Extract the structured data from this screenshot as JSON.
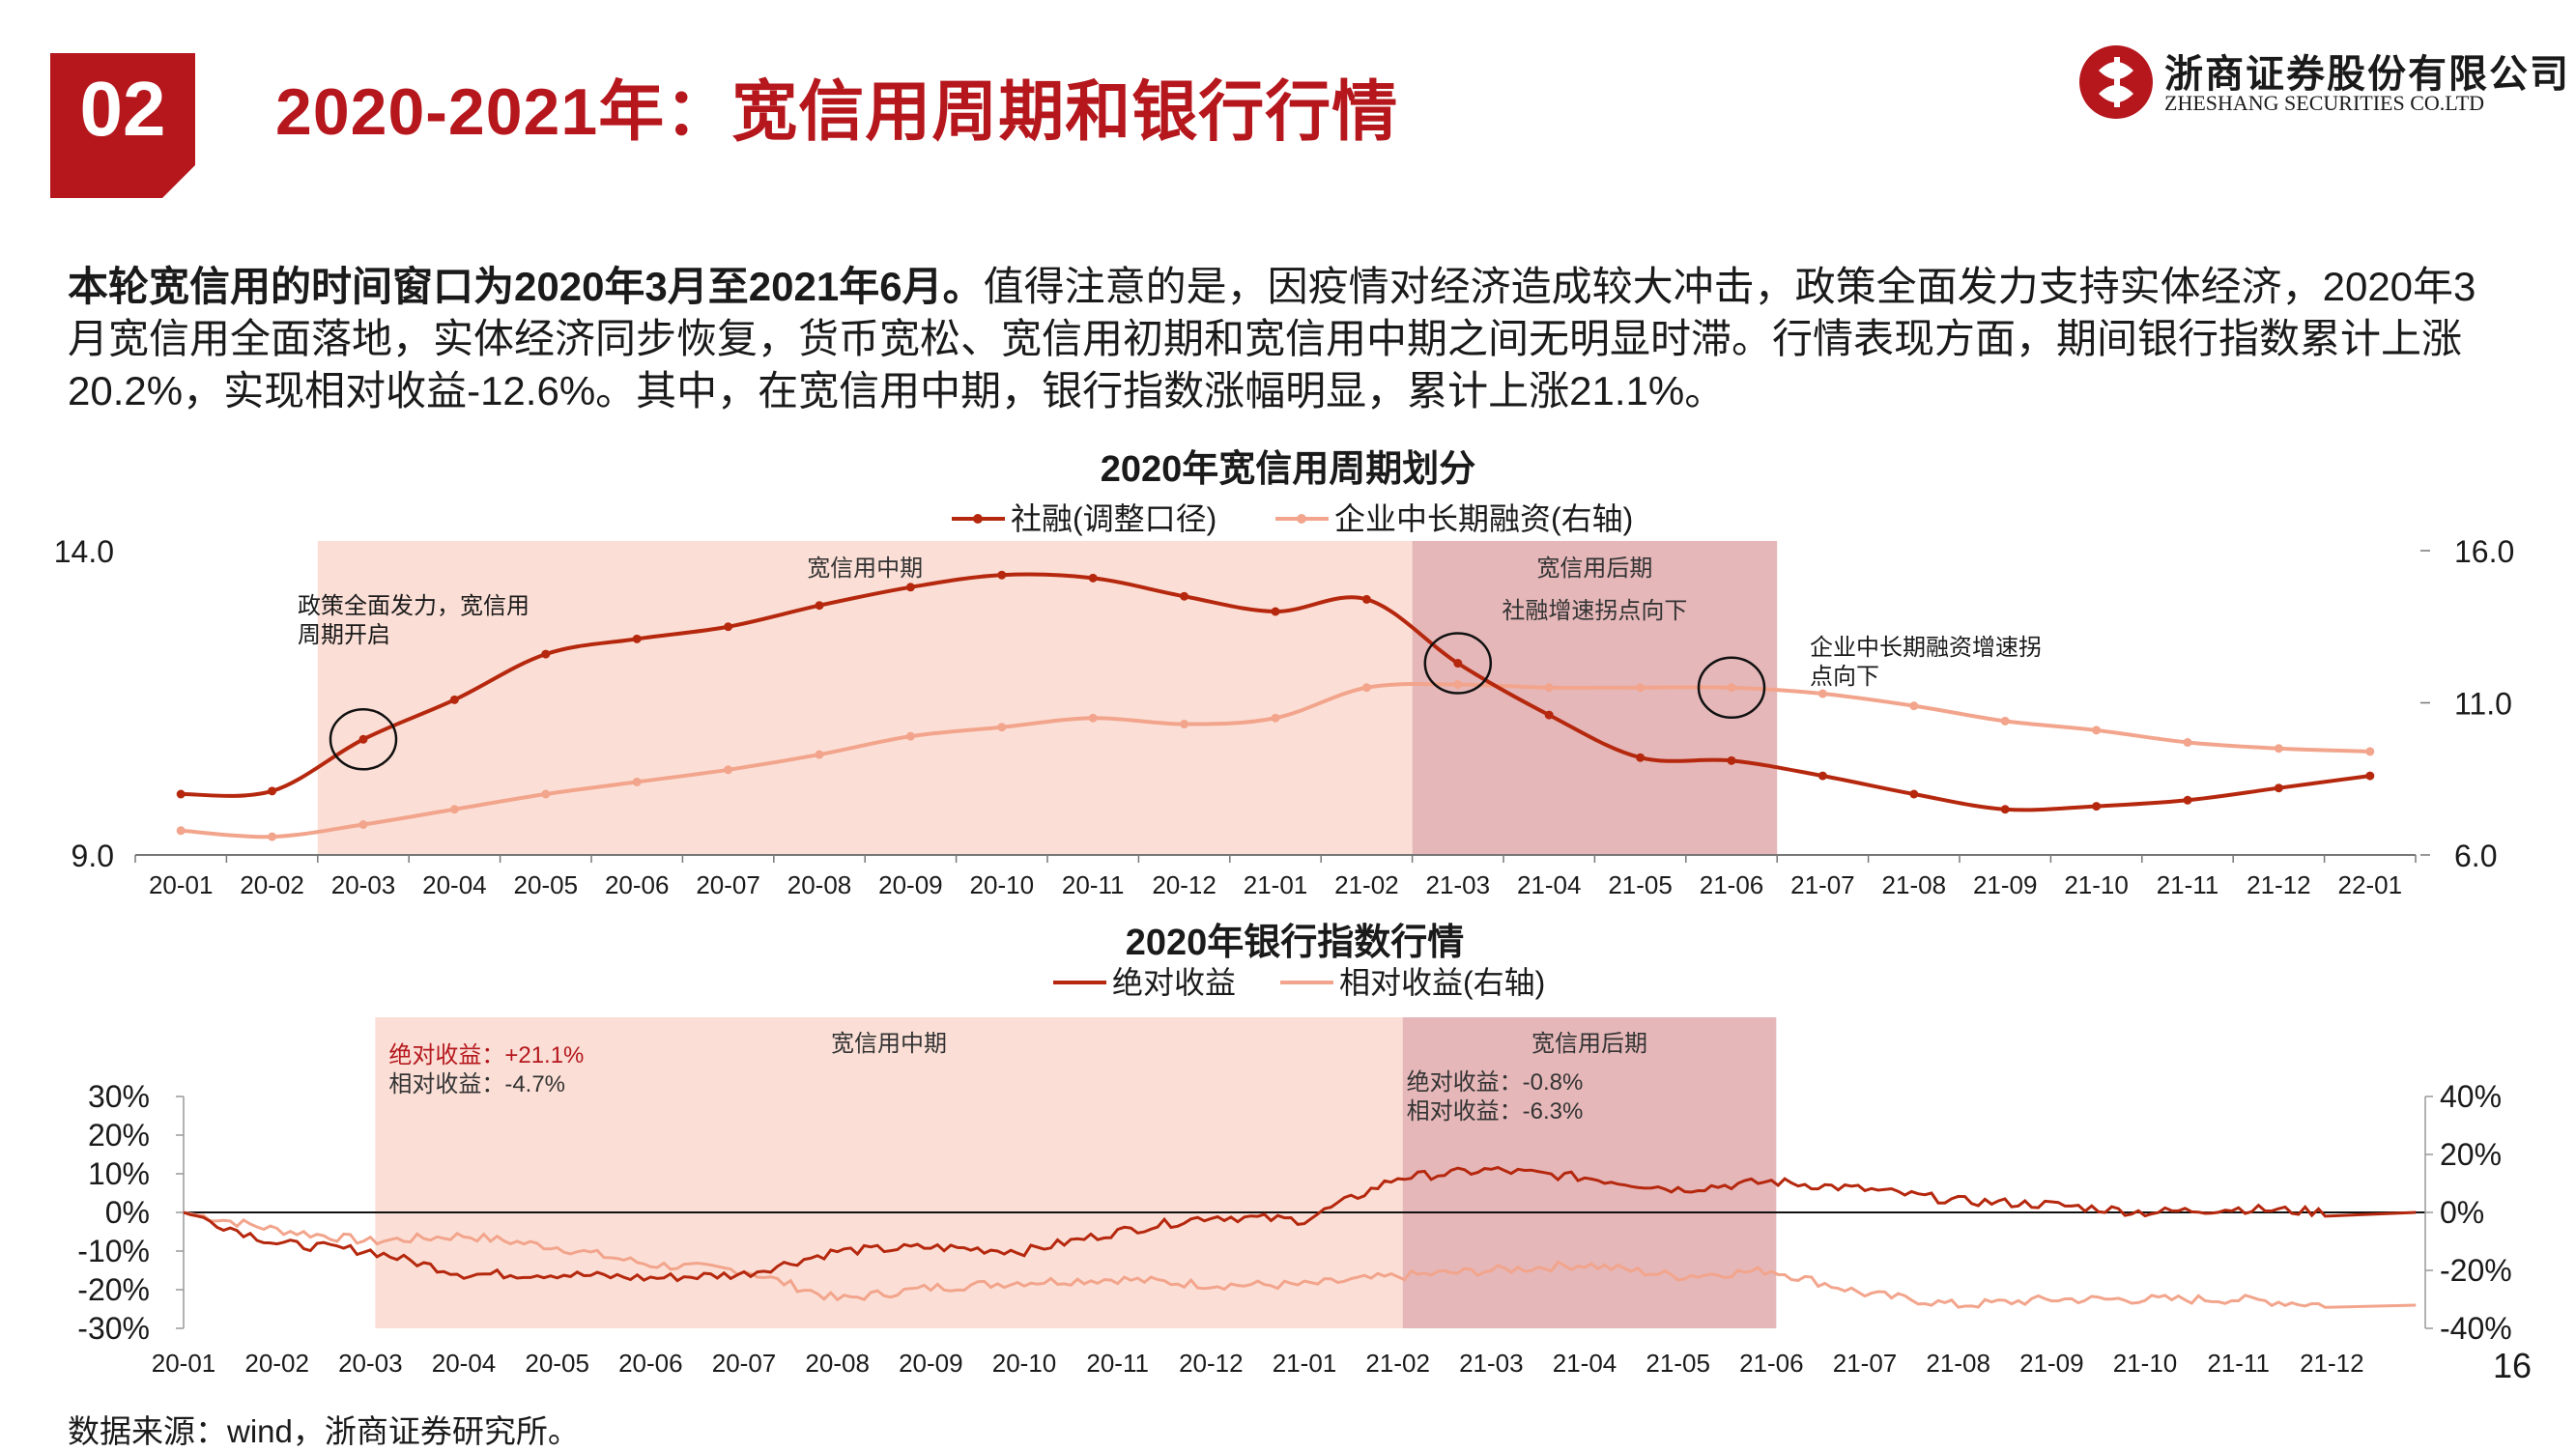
{
  "header": {
    "section_number": "02",
    "title": "2020-2021年：宽信用周期和银行行情",
    "logo_cn": "浙商证券股份有限公司",
    "logo_en": "ZHESHANG SECURITIES CO.LTD"
  },
  "paragraph": {
    "lead": "本轮宽信用的时间窗口为2020年3月至2021年6月。",
    "body": "值得注意的是，因疫情对经济造成较大冲击，政策全面发力支持实体经济，2020年3月宽信用全面落地，实体经济同步恢复，货币宽松、宽信用初期和宽信用中期之间无明显时滞。行情表现方面，期间银行指数累计上涨20.2%，实现相对收益-12.6%。其中，在宽信用中期，银行指数涨幅明显，累计上涨21.1%。"
  },
  "colors": {
    "brand_red": "#b5171d",
    "series_dark": "#b5280e",
    "series_light": "#f2a58c",
    "shade_mid": "#fbdfd6",
    "shade_late": "#e5b7b9"
  },
  "chart_data": [
    {
      "type": "line",
      "title": "2020年宽信用周期划分",
      "x": [
        "20-01",
        "20-02",
        "20-03",
        "20-04",
        "20-05",
        "20-06",
        "20-07",
        "20-08",
        "20-09",
        "20-10",
        "20-11",
        "20-12",
        "21-01",
        "21-02",
        "21-03",
        "21-04",
        "21-05",
        "21-06",
        "21-07",
        "21-08",
        "21-09",
        "21-10",
        "21-11",
        "21-12",
        "22-01"
      ],
      "series": [
        {
          "name": "社融(调整口径)",
          "axis": "left",
          "marker": true,
          "values": [
            10.0,
            10.05,
            10.9,
            11.55,
            12.3,
            12.55,
            12.75,
            13.1,
            13.4,
            13.6,
            13.55,
            13.25,
            13.0,
            13.2,
            12.15,
            11.3,
            10.6,
            10.55,
            10.3,
            10.0,
            9.75,
            9.8,
            9.9,
            10.1,
            10.3
          ]
        },
        {
          "name": "企业中长期融资(右轴)",
          "axis": "right",
          "marker": true,
          "values": [
            6.8,
            6.6,
            7.0,
            7.5,
            8.0,
            8.4,
            8.8,
            9.3,
            9.9,
            10.2,
            10.5,
            10.3,
            10.5,
            11.5,
            11.6,
            11.5,
            11.5,
            11.5,
            11.3,
            10.9,
            10.4,
            10.1,
            9.7,
            9.5,
            9.4
          ]
        }
      ],
      "ylim_left": [
        9.0,
        14.0
      ],
      "yticks_left": [
        "14.0",
        "9.0"
      ],
      "ylim_right": [
        6.0,
        16.0
      ],
      "yticks_right": [
        "16.0",
        "11.0",
        "6.0"
      ],
      "legend_position": "top-center",
      "shaded_periods": [
        {
          "label": "宽信用中期",
          "from": "20-03",
          "to": "21-03"
        },
        {
          "label": "宽信用后期",
          "from": "21-03",
          "to": "21-07",
          "sublabel": "社融增速拐点向下"
        }
      ],
      "annotations": [
        {
          "text_lines": [
            "政策全面发力，宽信用",
            "周期开启"
          ],
          "at": "20-03"
        },
        {
          "text_lines": [
            "企业中长期融资增速拐",
            "点向下"
          ],
          "at": "21-06"
        }
      ],
      "circled_points": [
        {
          "x": "20-03",
          "value": 10.9,
          "axis": "left"
        },
        {
          "x": "21-03",
          "value": 12.15,
          "axis": "left"
        },
        {
          "x": "21-06",
          "value": 11.5,
          "axis": "right"
        }
      ]
    },
    {
      "type": "line",
      "title": "2020年银行指数行情",
      "x": [
        "20-01",
        "20-02",
        "20-03",
        "20-04",
        "20-05",
        "20-06",
        "20-07",
        "20-08",
        "20-09",
        "20-10",
        "20-11",
        "20-12",
        "21-01",
        "21-02",
        "21-03",
        "21-04",
        "21-05",
        "21-06",
        "21-07",
        "21-08",
        "21-09",
        "21-10",
        "21-11",
        "21-12"
      ],
      "series": [
        {
          "name": "绝对收益",
          "axis": "left",
          "unit": "%",
          "values": [
            0,
            -8,
            -10,
            -16,
            -16,
            -17,
            -16,
            -10,
            -9,
            -10,
            -5,
            -1,
            -2,
            9,
            11,
            9,
            6,
            8,
            6,
            3,
            2,
            0,
            1,
            0
          ]
        },
        {
          "name": "相对收益(右轴)",
          "axis": "right",
          "unit": "%",
          "values": [
            0,
            -6,
            -10,
            -8,
            -12,
            -18,
            -20,
            -30,
            -26,
            -24,
            -23,
            -25,
            -25,
            -22,
            -20,
            -18,
            -22,
            -20,
            -28,
            -32,
            -30,
            -30,
            -30,
            -32
          ]
        }
      ],
      "ylim_left": [
        -30,
        30
      ],
      "yticks_left": [
        "30%",
        "20%",
        "10%",
        "0%",
        "-10%",
        "-20%",
        "-30%"
      ],
      "ylim_right": [
        -40,
        40
      ],
      "yticks_right": [
        "40%",
        "20%",
        "0%",
        "-20%",
        "-40%"
      ],
      "legend_position": "top-center",
      "shaded_periods": [
        {
          "label": "宽信用中期",
          "from": "20-03",
          "to": "21-02"
        },
        {
          "label": "宽信用后期",
          "from": "21-02",
          "to": "21-06"
        }
      ],
      "annotations": [
        {
          "lines": [
            {
              "text": "绝对收益：+21.1%",
              "color": "#b5171d"
            },
            {
              "text": "相对收益：-4.7%",
              "color": "#333333"
            }
          ],
          "at": "20-03"
        },
        {
          "lines": [
            {
              "text": "绝对收益：-0.8%",
              "color": "#333333"
            },
            {
              "text": "相对收益：-6.3%",
              "color": "#333333"
            }
          ],
          "at": "21-02"
        }
      ]
    }
  ],
  "footer": {
    "source": "数据来源：wind，浙商证券研究所。",
    "page_number": "16"
  }
}
